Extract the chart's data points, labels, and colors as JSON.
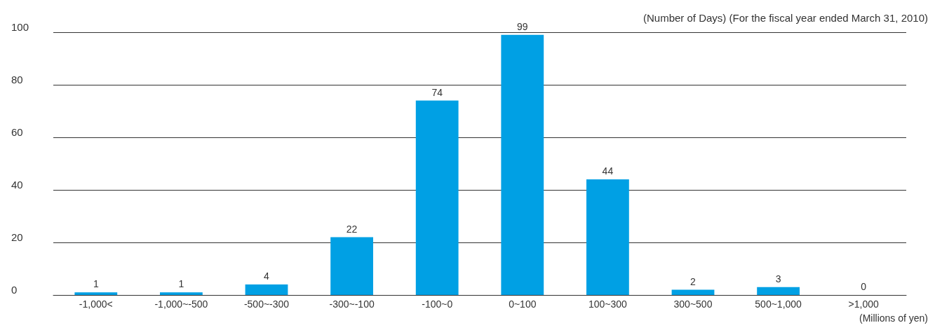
{
  "chart_data": {
    "type": "bar",
    "xlabel": "(Millions of yen)",
    "annotations": [
      "(Number of Days) (For the fiscal year ended March 31, 2010)"
    ],
    "categories": [
      "-1,000<",
      "-1,000~-500",
      "-500~-300",
      "-300~-100",
      "-100~0",
      "0~100",
      "100~300",
      "300~500",
      "500~1,000",
      ">1,000"
    ],
    "values": [
      1,
      1,
      4,
      22,
      74,
      99,
      44,
      2,
      3,
      0
    ],
    "color": "#00a0e4",
    "ylim": [
      0,
      100
    ],
    "yticks": [
      0,
      20,
      40,
      60,
      80,
      100
    ],
    "grid": "y",
    "data_labels": true
  }
}
